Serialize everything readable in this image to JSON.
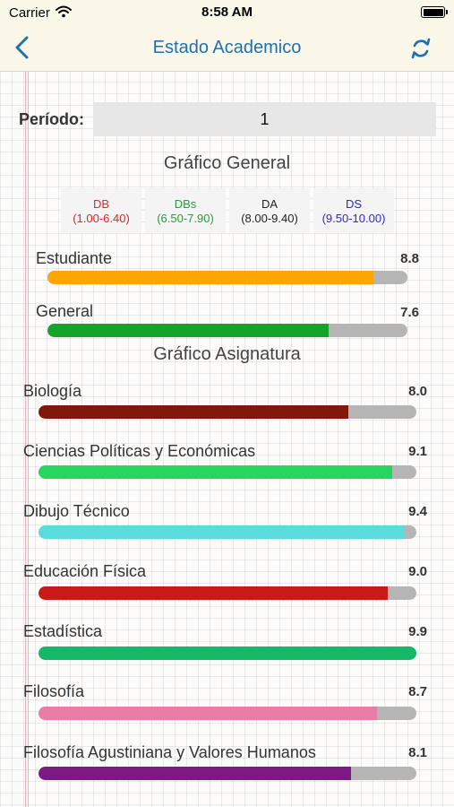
{
  "status_bar": {
    "carrier": "Carrier",
    "time": "8:58 AM"
  },
  "nav": {
    "title": "Estado Academico"
  },
  "period": {
    "label": "Período:",
    "value": "1"
  },
  "general_chart": {
    "title": "Gráfico General",
    "legend": [
      {
        "code": "DB",
        "range": "(1.00-6.40)",
        "color": "#d22b2b"
      },
      {
        "code": "DBs",
        "range": "(6.50-7.90)",
        "color": "#2a9a3c"
      },
      {
        "code": "DA",
        "range": "(8.00-9.40)",
        "color": "#222222"
      },
      {
        "code": "DS",
        "range": "(9.50-10.00)",
        "color": "#2b2bcc"
      }
    ],
    "bars": [
      {
        "label": "Estudiante",
        "value": "8.8",
        "fraction": 0.905,
        "color": "#ffa600"
      },
      {
        "label": "General",
        "value": "7.6",
        "fraction": 0.78,
        "color": "#16a32a"
      }
    ]
  },
  "subject_chart": {
    "title": "Gráfico Asignatura",
    "bars": [
      {
        "label": "Biología",
        "value": "8.0",
        "fraction": 0.82,
        "color": "#7f1a0a"
      },
      {
        "label": "Ciencias Políticas y Económicas",
        "value": "9.1",
        "fraction": 0.937,
        "color": "#26d65f"
      },
      {
        "label": "Dibujo Técnico",
        "value": "9.4",
        "fraction": 0.968,
        "color": "#5bdbdc"
      },
      {
        "label": "Educación Física",
        "value": "9.0",
        "fraction": 0.925,
        "color": "#c91a1a"
      },
      {
        "label": "Estadística",
        "value": "9.9",
        "fraction": 1.0,
        "color": "#16b766"
      },
      {
        "label": "Filosofía",
        "value": "8.7",
        "fraction": 0.896,
        "color": "#e87ea6"
      },
      {
        "label": "Filosofía Agustiniana y Valores Humanos",
        "value": "8.1",
        "fraction": 0.827,
        "color": "#7a1a82"
      }
    ]
  },
  "colors": {
    "accent": "#1f6fb5",
    "bar_background": "#b5b5b5",
    "header_background": "#fbf8ea"
  }
}
